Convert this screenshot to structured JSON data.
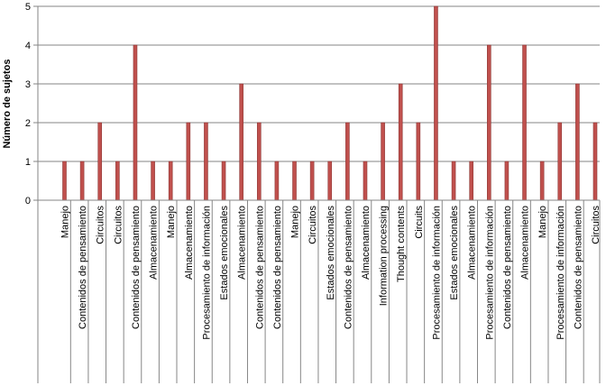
{
  "chart_data": {
    "type": "bar",
    "title": "",
    "xlabel": "",
    "ylabel": "Número de sujetos",
    "ylim": [
      0,
      5
    ],
    "yticks": [
      0,
      1,
      2,
      3,
      4,
      5
    ],
    "grid": true,
    "legend": "none",
    "colors": {
      "bar": "#c0504d",
      "bar_edge": "#8c3836",
      "grid": "#868686",
      "axis": "#868686"
    },
    "categories": [
      "Manejo",
      "Contenidos de pensamiento",
      "Circuitos",
      "Circuitos",
      "Contenidos de pensamiento",
      "Almacenamiento",
      "Manejo",
      "Almacenamiento",
      "Procesamiento de información",
      "Estados emocionales",
      "Almacenamiento",
      "Contenidos de pensamiento",
      "Contenidos de pensamiento",
      "Manejo",
      "Circuitos",
      "Estados emocionales",
      "Contenidos de pensamiento",
      "Almacenamiento",
      "Information processing",
      "Thought contents",
      "Circuits",
      "Procesamiento de información",
      "Estados emocionales",
      "Almacenamiento",
      "Procesamiento de información",
      "Contenidos de pensamiento",
      "Almacenamiento",
      "Manejo",
      "Procesamiento de información",
      "Contenidos de pensamiento",
      "Circuitos"
    ],
    "values": [
      1,
      1,
      2,
      1,
      4,
      1,
      1,
      2,
      2,
      1,
      3,
      2,
      1,
      1,
      1,
      1,
      2,
      1,
      2,
      3,
      2,
      5,
      1,
      1,
      4,
      1,
      4,
      1,
      2,
      3,
      2
    ]
  }
}
